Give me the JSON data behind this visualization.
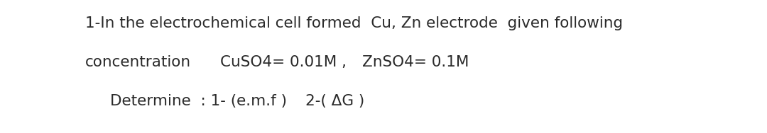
{
  "background_color": "#ffffff",
  "text_color": "#2a2a2a",
  "line1": "1-In the electrochemical cell formed  Cu, Zn electrode  given following",
  "line2_left": "concentration",
  "line2_mid": "CuSO4= 0.01M ,",
  "line2_right": "ZnSO4= 0.1M",
  "line3_left": "Determine  : 1- (e.m.f )",
  "line3_right": "2-( ΔG )",
  "font_size": 15.5,
  "fig_width": 10.8,
  "fig_height": 1.88,
  "dpi": 100
}
